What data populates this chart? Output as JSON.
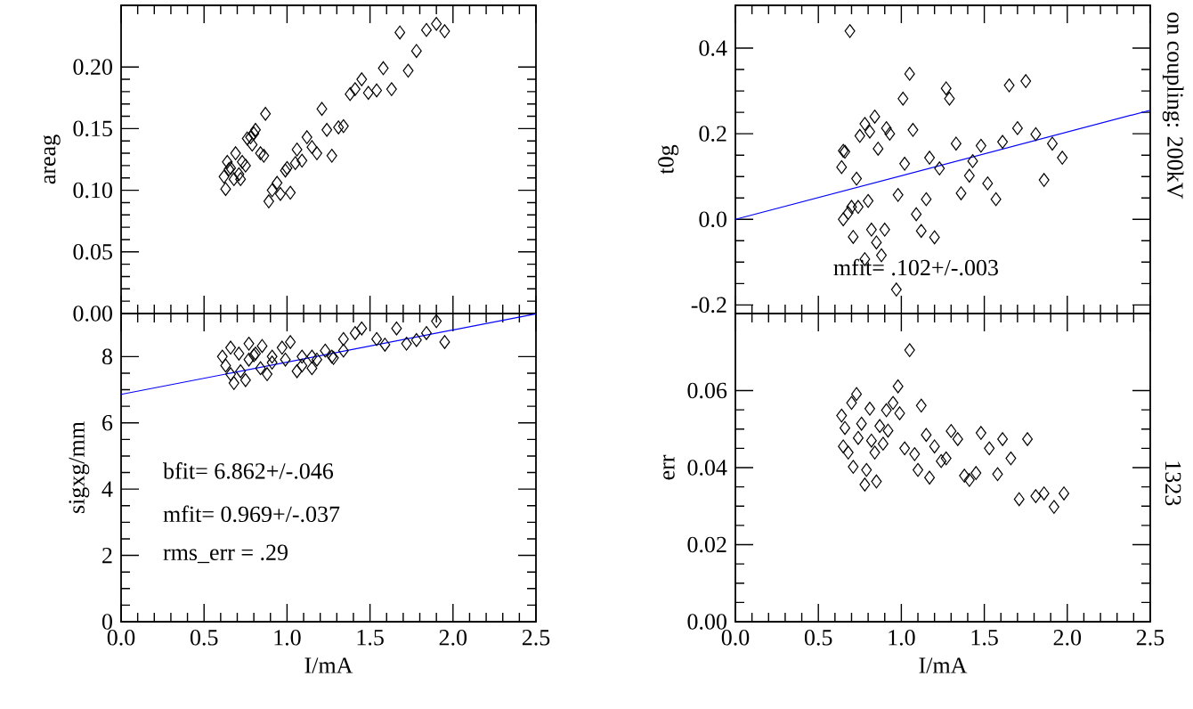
{
  "chart_data": [
    {
      "type": "scatter",
      "ylabel": "areag",
      "xlim": [
        0,
        2.5
      ],
      "ylim": [
        0,
        0.25
      ],
      "tick_labels": "y",
      "xticks": [
        {
          "value": 0,
          "label": null
        },
        {
          "value": 0.5,
          "label": null
        },
        {
          "value": 1,
          "label": null
        },
        {
          "value": 1.5,
          "label": null
        },
        {
          "value": 2,
          "label": null
        },
        {
          "value": 2.5,
          "label": null
        }
      ],
      "yticks": [
        {
          "value": 0,
          "label": "0.00"
        },
        {
          "value": 0.05,
          "label": "0.05"
        },
        {
          "value": 0.1,
          "label": "0.10"
        },
        {
          "value": 0.15,
          "label": "0.15"
        },
        {
          "value": 0.2,
          "label": "0.20"
        }
      ],
      "series": [
        {
          "marker": "diamond",
          "color": "#000000",
          "x": [
            0.63,
            0.62,
            0.65,
            0.64,
            0.68,
            0.66,
            0.69,
            0.71,
            0.73,
            0.75,
            0.76,
            0.78,
            0.8,
            0.79,
            0.81,
            0.84,
            0.86,
            0.87,
            0.72,
            0.89,
            0.91,
            0.94,
            0.96,
            0.99,
            1.02,
            1.0,
            1.05,
            1.06,
            1.09,
            1.12,
            1.15,
            1.18,
            1.21,
            1.24,
            1.27,
            1.31,
            1.34,
            1.38,
            1.41,
            1.45,
            1.49,
            1.54,
            1.58,
            1.63,
            1.68,
            1.73,
            1.78,
            1.84,
            1.9,
            1.95
          ],
          "values": [
            0.101,
            0.111,
            0.117,
            0.123,
            0.109,
            0.118,
            0.13,
            0.113,
            0.123,
            0.12,
            0.142,
            0.143,
            0.146,
            0.137,
            0.149,
            0.13,
            0.128,
            0.162,
            0.109,
            0.091,
            0.1,
            0.106,
            0.097,
            0.116,
            0.098,
            0.118,
            0.122,
            0.133,
            0.124,
            0.143,
            0.135,
            0.13,
            0.166,
            0.149,
            0.128,
            0.151,
            0.152,
            0.178,
            0.182,
            0.19,
            0.179,
            0.181,
            0.199,
            0.182,
            0.228,
            0.197,
            0.213,
            0.23,
            0.235,
            0.229
          ]
        }
      ]
    },
    {
      "type": "scatter",
      "ylabel": "t0g",
      "xlim": [
        0,
        2.5
      ],
      "ylim": [
        -0.22,
        0.5
      ],
      "tick_labels": "y",
      "xticks": [
        {
          "value": 0,
          "label": null
        },
        {
          "value": 0.5,
          "label": null
        },
        {
          "value": 1,
          "label": null
        },
        {
          "value": 1.5,
          "label": null
        },
        {
          "value": 2,
          "label": null
        },
        {
          "value": 2.5,
          "label": null
        }
      ],
      "yticks": [
        {
          "value": -0.2,
          "label": "-0.2"
        },
        {
          "value": 0,
          "label": "0.0"
        },
        {
          "value": 0.2,
          "label": "0.2"
        },
        {
          "value": 0.4,
          "label": "0.4"
        }
      ],
      "annotations": [
        "mfit=  .102+/-.003",
        "on coupling: 200kV"
      ],
      "series": [
        {
          "marker": "diamond",
          "color": "#000000",
          "x": [
            0.69,
            0.65,
            0.64,
            0.66,
            0.73,
            0.65,
            0.68,
            0.7,
            0.74,
            0.71,
            0.75,
            0.78,
            0.81,
            0.84,
            0.86,
            0.8,
            0.82,
            0.85,
            0.78,
            0.88,
            0.9,
            0.91,
            0.93,
            0.97,
            0.98,
            1.01,
            1.02,
            1.05,
            1.07,
            1.09,
            1.12,
            1.15,
            1.17,
            1.2,
            1.23,
            1.27,
            1.29,
            1.33,
            1.36,
            1.41,
            1.43,
            1.48,
            1.52,
            1.57,
            1.61,
            1.65,
            1.7,
            1.75,
            1.81,
            1.86,
            1.91,
            1.97
          ],
          "values": [
            0.44,
            0.16,
            0.122,
            0.158,
            0.095,
            0.0,
            0.015,
            0.029,
            0.029,
            -0.041,
            0.195,
            0.223,
            0.205,
            0.24,
            0.165,
            0.043,
            -0.024,
            -0.054,
            -0.093,
            -0.084,
            -0.024,
            0.213,
            0.2,
            -0.164,
            0.057,
            0.282,
            0.13,
            0.34,
            0.209,
            0.012,
            -0.027,
            0.047,
            0.144,
            -0.042,
            0.119,
            0.306,
            0.282,
            0.177,
            0.061,
            0.102,
            0.136,
            0.172,
            0.084,
            0.047,
            0.181,
            0.313,
            0.213,
            0.323,
            0.199,
            0.092,
            0.177,
            0.144
          ]
        },
        {
          "type": "line",
          "color": "#0000ff",
          "x": [
            0,
            2.5
          ],
          "values": [
            0,
            0.255
          ]
        }
      ]
    },
    {
      "type": "scatter",
      "ylabel": "sigxg/mm",
      "xlabel": "I/mA",
      "xlim": [
        0,
        2.5
      ],
      "ylim": [
        0,
        9.3
      ],
      "xticks": [
        {
          "value": 0,
          "label": "0.0"
        },
        {
          "value": 0.5,
          "label": "0.5"
        },
        {
          "value": 1,
          "label": "1.0"
        },
        {
          "value": 1.5,
          "label": "1.5"
        },
        {
          "value": 2,
          "label": "2.0"
        },
        {
          "value": 2.5,
          "label": "2.5"
        }
      ],
      "yticks": [
        0,
        2,
        4,
        6,
        8
      ],
      "annotations": [
        "bfit=  6.862+/-.046",
        "mfit=  0.969+/-.037",
        "rms_err  =  .29"
      ],
      "series": [
        {
          "marker": "diamond",
          "color": "#000000",
          "x": [
            0.61,
            0.66,
            0.71,
            0.77,
            0.8,
            0.85,
            0.91,
            0.97,
            1.02,
            1.09,
            1.15,
            1.23,
            1.28,
            1.34,
            1.41,
            1.45,
            1.54,
            1.59,
            1.66,
            1.72,
            1.78,
            1.84,
            1.9,
            1.95,
            0.63,
            0.66,
            0.68,
            0.72,
            0.75,
            0.77,
            0.81,
            0.84,
            0.88,
            0.91,
            0.99,
            1.06,
            1.09,
            1.15,
            1.18,
            1.27,
            1.34
          ],
          "values": [
            8.0,
            8.27,
            8.09,
            8.39,
            8.04,
            8.32,
            8.0,
            8.27,
            8.44,
            8.0,
            8.0,
            8.18,
            7.96,
            8.53,
            8.71,
            8.85,
            8.53,
            8.36,
            8.85,
            8.39,
            8.5,
            8.71,
            9.07,
            8.44,
            7.73,
            7.47,
            7.2,
            7.56,
            7.29,
            7.91,
            8.09,
            7.65,
            7.47,
            7.82,
            7.91,
            7.56,
            7.73,
            7.65,
            7.91,
            8.0,
            8.18
          ]
        },
        {
          "type": "line",
          "color": "#0000ff",
          "x": [
            0,
            2.5
          ],
          "values": [
            6.86,
            9.29
          ]
        }
      ]
    },
    {
      "type": "scatter",
      "ylabel": "err",
      "xlabel": "I/mA",
      "xlim": [
        0,
        2.5
      ],
      "ylim": [
        0,
        0.08
      ],
      "xticks": [
        {
          "value": 0,
          "label": "0.0"
        },
        {
          "value": 0.5,
          "label": "0.5"
        },
        {
          "value": 1,
          "label": "1.0"
        },
        {
          "value": 1.5,
          "label": "1.5"
        },
        {
          "value": 2,
          "label": "2.0"
        },
        {
          "value": 2.5,
          "label": "2.5"
        }
      ],
      "yticks": [
        {
          "value": 0,
          "label": "0.00"
        },
        {
          "value": 0.02,
          "label": "0.02"
        },
        {
          "value": 0.04,
          "label": "0.04"
        },
        {
          "value": 0.06,
          "label": "0.06"
        }
      ],
      "annotations": [
        "1323"
      ],
      "series": [
        {
          "marker": "diamond",
          "color": "#000000",
          "x": [
            0.64,
            0.66,
            0.73,
            0.7,
            0.65,
            0.68,
            0.71,
            0.74,
            0.76,
            0.78,
            0.79,
            0.81,
            0.82,
            0.84,
            0.85,
            0.87,
            0.89,
            0.91,
            0.92,
            0.95,
            0.98,
            0.99,
            1.02,
            1.05,
            1.08,
            1.1,
            1.12,
            1.15,
            1.17,
            1.2,
            1.24,
            1.27,
            1.3,
            1.34,
            1.38,
            1.41,
            1.45,
            1.48,
            1.53,
            1.58,
            1.61,
            1.66,
            1.71,
            1.76,
            1.81,
            1.86,
            1.92,
            1.98
          ],
          "values": [
            0.0535,
            0.0503,
            0.0591,
            0.0568,
            0.0455,
            0.0439,
            0.0402,
            0.0477,
            0.0514,
            0.0356,
            0.0394,
            0.0553,
            0.047,
            0.0439,
            0.0364,
            0.0508,
            0.0462,
            0.0549,
            0.0496,
            0.0568,
            0.0611,
            0.0541,
            0.045,
            0.0705,
            0.0435,
            0.0394,
            0.0561,
            0.0485,
            0.0374,
            0.0455,
            0.0417,
            0.0424,
            0.0495,
            0.0474,
            0.0379,
            0.0368,
            0.0386,
            0.049,
            0.045,
            0.0383,
            0.0474,
            0.0424,
            0.0318,
            0.0474,
            0.0326,
            0.0333,
            0.0298,
            0.0333
          ]
        }
      ]
    }
  ]
}
